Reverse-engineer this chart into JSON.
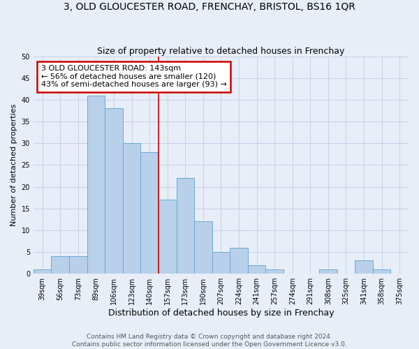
{
  "title": "3, OLD GLOUCESTER ROAD, FRENCHAY, BRISTOL, BS16 1QR",
  "subtitle": "Size of property relative to detached houses in Frenchay",
  "xlabel": "Distribution of detached houses by size in Frenchay",
  "ylabel": "Number of detached properties",
  "categories": [
    "39sqm",
    "56sqm",
    "73sqm",
    "89sqm",
    "106sqm",
    "123sqm",
    "140sqm",
    "157sqm",
    "173sqm",
    "190sqm",
    "207sqm",
    "224sqm",
    "241sqm",
    "257sqm",
    "274sqm",
    "291sqm",
    "308sqm",
    "325sqm",
    "341sqm",
    "358sqm",
    "375sqm"
  ],
  "values": [
    1,
    4,
    4,
    41,
    38,
    30,
    28,
    17,
    22,
    12,
    5,
    6,
    2,
    1,
    0,
    0,
    1,
    0,
    3,
    1,
    0
  ],
  "bar_color": "#b8d0ea",
  "bar_edge_color": "#6aaad4",
  "annotation_text": "3 OLD GLOUCESTER ROAD: 143sqm\n← 56% of detached houses are smaller (120)\n43% of semi-detached houses are larger (93) →",
  "annotation_box_color": "#ffffff",
  "annotation_box_edge": "#cc0000",
  "vline_color": "#cc0000",
  "vline_x": 6.5,
  "footer_line1": "Contains HM Land Registry data © Crown copyright and database right 2024.",
  "footer_line2": "Contains public sector information licensed under the Open Government Licence v3.0.",
  "ylim": [
    0,
    50
  ],
  "yticks": [
    0,
    5,
    10,
    15,
    20,
    25,
    30,
    35,
    40,
    45,
    50
  ],
  "grid_color": "#c8d4e8",
  "bg_color": "#e8eef8",
  "title_fontsize": 10,
  "subtitle_fontsize": 9,
  "ylabel_fontsize": 8,
  "xlabel_fontsize": 9,
  "tick_fontsize": 7,
  "footer_fontsize": 6.5,
  "annotation_fontsize": 8
}
